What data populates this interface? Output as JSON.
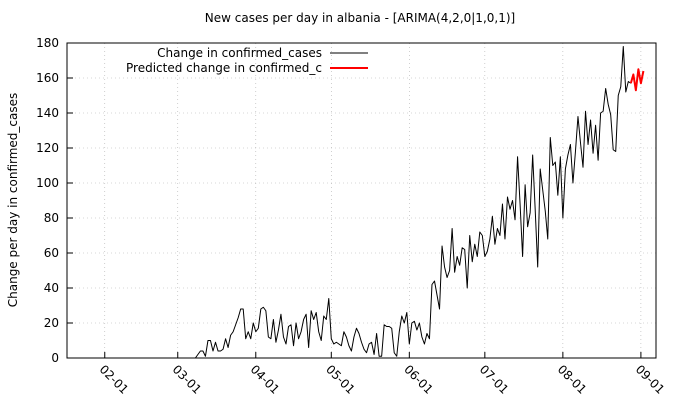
{
  "chart_data": {
    "type": "line",
    "title": "New cases per day in albania -  [ARIMA(4,2,0|1,0,1)]",
    "y_label": "Change per day in confirmed_cases",
    "xlim": [
      "01-17",
      "09-07"
    ],
    "xticks": [
      "02-01",
      "03-01",
      "04-01",
      "05-01",
      "06-01",
      "07-01",
      "08-01",
      "09-01"
    ],
    "ylim": [
      0,
      180
    ],
    "yticks": [
      0,
      20,
      40,
      60,
      80,
      100,
      120,
      140,
      160,
      180
    ],
    "grid": true,
    "legend": "top-left",
    "series": [
      {
        "name": "Change in confirmed_cases",
        "color": "#000000",
        "x": [
          "03-08",
          "03-09",
          "03-10",
          "03-11",
          "03-12",
          "03-13",
          "03-14",
          "03-15",
          "03-16",
          "03-17",
          "03-18",
          "03-19",
          "03-20",
          "03-21",
          "03-22",
          "03-23",
          "03-24",
          "03-25",
          "03-26",
          "03-27",
          "03-28",
          "03-29",
          "03-30",
          "03-31",
          "04-01",
          "04-02",
          "04-03",
          "04-04",
          "04-05",
          "04-06",
          "04-07",
          "04-08",
          "04-09",
          "04-10",
          "04-11",
          "04-12",
          "04-13",
          "04-14",
          "04-15",
          "04-16",
          "04-17",
          "04-18",
          "04-19",
          "04-20",
          "04-21",
          "04-22",
          "04-23",
          "04-24",
          "04-25",
          "04-26",
          "04-27",
          "04-28",
          "04-29",
          "04-30",
          "05-01",
          "05-02",
          "05-03",
          "05-04",
          "05-05",
          "05-06",
          "05-07",
          "05-08",
          "05-09",
          "05-10",
          "05-11",
          "05-12",
          "05-13",
          "05-14",
          "05-15",
          "05-16",
          "05-17",
          "05-18",
          "05-19",
          "05-20",
          "05-21",
          "05-22",
          "05-23",
          "05-24",
          "05-25",
          "05-26",
          "05-27",
          "05-28",
          "05-29",
          "05-30",
          "05-31",
          "06-01",
          "06-02",
          "06-03",
          "06-04",
          "06-05",
          "06-06",
          "06-07",
          "06-08",
          "06-09",
          "06-10",
          "06-11",
          "06-12",
          "06-13",
          "06-14",
          "06-15",
          "06-16",
          "06-17",
          "06-18",
          "06-19",
          "06-20",
          "06-21",
          "06-22",
          "06-23",
          "06-24",
          "06-25",
          "06-26",
          "06-27",
          "06-28",
          "06-29",
          "06-30",
          "07-01",
          "07-02",
          "07-03",
          "07-04",
          "07-05",
          "07-06",
          "07-07",
          "07-08",
          "07-09",
          "07-10",
          "07-11",
          "07-12",
          "07-13",
          "07-14",
          "07-15",
          "07-16",
          "07-17",
          "07-18",
          "07-19",
          "07-20",
          "07-21",
          "07-22",
          "07-23",
          "07-24",
          "07-25",
          "07-26",
          "07-27",
          "07-28",
          "07-29",
          "07-30",
          "07-31",
          "08-01",
          "08-02",
          "08-03",
          "08-04",
          "08-05",
          "08-06",
          "08-07",
          "08-08",
          "08-09",
          "08-10",
          "08-11",
          "08-12",
          "08-13",
          "08-14",
          "08-15",
          "08-16",
          "08-17",
          "08-18",
          "08-19",
          "08-20",
          "08-21",
          "08-22",
          "08-23",
          "08-24",
          "08-25",
          "08-26",
          "08-27",
          "08-28"
        ],
        "values": [
          0,
          2,
          4,
          4,
          1,
          10,
          10,
          4,
          9,
          4,
          4,
          5,
          11,
          6,
          13,
          15,
          19,
          23,
          28,
          28,
          11,
          15,
          11,
          20,
          15,
          17,
          28,
          29,
          27,
          12,
          11,
          22,
          9,
          16,
          25,
          12,
          8,
          18,
          19,
          7,
          20,
          11,
          15,
          22,
          25,
          6,
          27,
          22,
          26,
          15,
          10,
          24,
          22,
          34,
          11,
          8,
          9,
          8,
          7,
          15,
          12,
          7,
          4,
          12,
          17,
          14,
          9,
          5,
          3,
          8,
          9,
          2,
          14,
          1,
          1,
          19,
          18,
          18,
          17,
          3,
          1,
          15,
          24,
          20,
          26,
          8,
          20,
          21,
          16,
          20,
          12,
          8,
          14,
          11,
          42,
          44,
          36,
          28,
          64,
          52,
          46,
          50,
          74,
          49,
          58,
          53,
          63,
          62,
          40,
          70,
          55,
          65,
          58,
          72,
          70,
          58,
          61,
          68,
          81,
          65,
          74,
          70,
          88,
          68,
          92,
          85,
          90,
          79,
          115,
          88,
          58,
          99,
          75,
          83,
          116,
          85,
          52,
          108,
          96,
          84,
          68,
          126,
          110,
          112,
          93,
          115,
          80,
          108,
          116,
          122,
          100,
          118,
          138,
          123,
          109,
          141,
          122,
          136,
          117,
          133,
          113,
          140,
          141,
          154,
          145,
          139,
          119,
          118,
          150,
          155,
          178,
          152,
          158,
          157
        ]
      },
      {
        "name": "Predicted change in confirmed_c",
        "color": "#ff0000",
        "x": [
          "08-28",
          "08-29",
          "08-30",
          "08-31",
          "09-01",
          "09-02"
        ],
        "values": [
          157,
          162,
          153,
          165,
          157,
          164
        ]
      }
    ]
  }
}
